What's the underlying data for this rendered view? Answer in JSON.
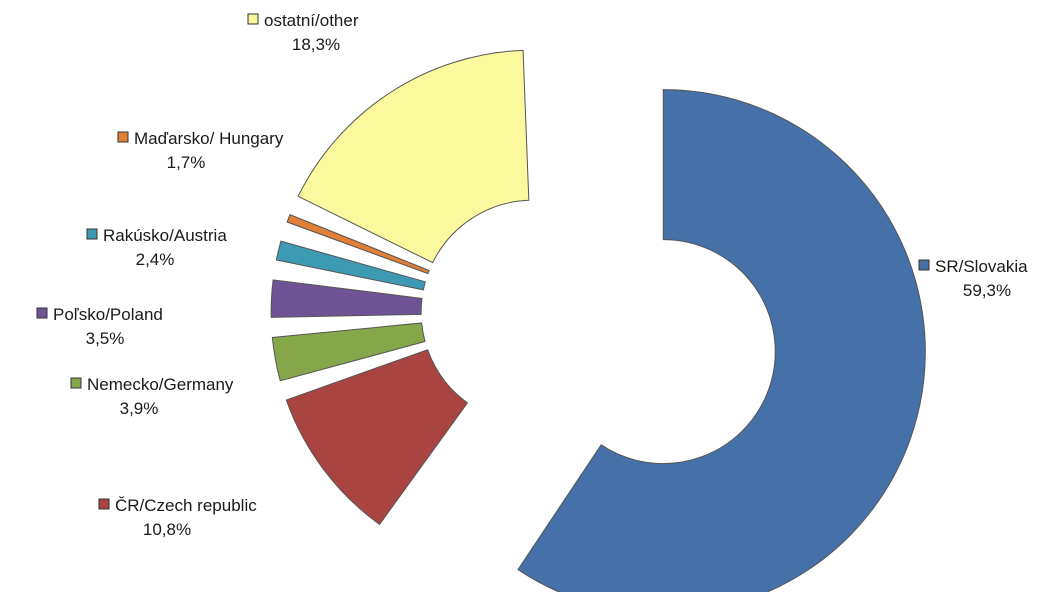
{
  "chart_data": {
    "type": "pie",
    "variant": "exploded-doughnut",
    "slices": [
      {
        "name": "SR/Slovakia",
        "value_label": "59,3%",
        "value": 59.3,
        "color": "#4570a8"
      },
      {
        "name": "ČR/Czech republic",
        "value_label": "10,8%",
        "value": 10.8,
        "color": "#a94441"
      },
      {
        "name": "Nemecko/Germany",
        "value_label": "3,9%",
        "value": 3.9,
        "color": "#86a64a"
      },
      {
        "name": "Poľsko/Poland",
        "value_label": "3,5%",
        "value": 3.5,
        "color": "#6e5495"
      },
      {
        "name": "Rakúsko/Austria",
        "value_label": "2,4%",
        "value": 2.4,
        "color": "#3c9bb2"
      },
      {
        "name": "Maďarsko/ Hungary",
        "value_label": "1,7%",
        "value": 1.7,
        "color": "#e07f35"
      },
      {
        "name": "ostatní/other",
        "value_label": "18,3%",
        "value": 18.3,
        "color": "#fbf99d"
      }
    ]
  }
}
